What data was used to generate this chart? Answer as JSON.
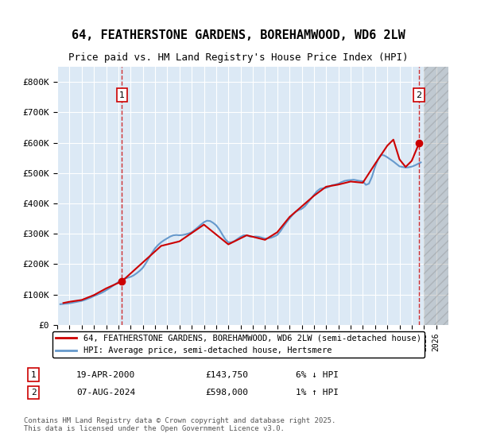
{
  "title": "64, FEATHERSTONE GARDENS, BOREHAMWOOD, WD6 2LW",
  "subtitle": "Price paid vs. HM Land Registry's House Price Index (HPI)",
  "ylabel_ticks": [
    "£0",
    "£100K",
    "£200K",
    "£300K",
    "£400K",
    "£500K",
    "£600K",
    "£700K",
    "£800K"
  ],
  "ylim": [
    0,
    850000
  ],
  "xlim_start": 1995,
  "xlim_end": 2027,
  "background_color": "#dce9f5",
  "plot_bg": "#dce9f5",
  "hatch_color": "#c0c0c0",
  "red_line_color": "#cc0000",
  "blue_line_color": "#6699cc",
  "marker1_date_x": 2000.3,
  "marker1_price": 143750,
  "marker2_date_x": 2024.6,
  "marker2_price": 598000,
  "legend1": "64, FEATHERSTONE GARDENS, BOREHAMWOOD, WD6 2LW (semi-detached house)",
  "legend2": "HPI: Average price, semi-detached house, Hertsmere",
  "annotation1_label": "1",
  "annotation2_label": "2",
  "note1_num": "1",
  "note1_date": "19-APR-2000",
  "note1_price": "£143,750",
  "note1_hpi": "6% ↓ HPI",
  "note2_num": "2",
  "note2_date": "07-AUG-2024",
  "note2_price": "£598,000",
  "note2_hpi": "1% ↑ HPI",
  "footer": "Contains HM Land Registry data © Crown copyright and database right 2025.\nThis data is licensed under the Open Government Licence v3.0.",
  "hpi_data": {
    "years": [
      1995.25,
      1995.5,
      1995.75,
      1996.0,
      1996.25,
      1996.5,
      1996.75,
      1997.0,
      1997.25,
      1997.5,
      1997.75,
      1998.0,
      1998.25,
      1998.5,
      1998.75,
      1999.0,
      1999.25,
      1999.5,
      1999.75,
      2000.0,
      2000.25,
      2000.5,
      2000.75,
      2001.0,
      2001.25,
      2001.5,
      2001.75,
      2002.0,
      2002.25,
      2002.5,
      2002.75,
      2003.0,
      2003.25,
      2003.5,
      2003.75,
      2004.0,
      2004.25,
      2004.5,
      2004.75,
      2005.0,
      2005.25,
      2005.5,
      2005.75,
      2006.0,
      2006.25,
      2006.5,
      2006.75,
      2007.0,
      2007.25,
      2007.5,
      2007.75,
      2008.0,
      2008.25,
      2008.5,
      2008.75,
      2009.0,
      2009.25,
      2009.5,
      2009.75,
      2010.0,
      2010.25,
      2010.5,
      2010.75,
      2011.0,
      2011.25,
      2011.5,
      2011.75,
      2012.0,
      2012.25,
      2012.5,
      2012.75,
      2013.0,
      2013.25,
      2013.5,
      2013.75,
      2014.0,
      2014.25,
      2014.5,
      2014.75,
      2015.0,
      2015.25,
      2015.5,
      2015.75,
      2016.0,
      2016.25,
      2016.5,
      2016.75,
      2017.0,
      2017.25,
      2017.5,
      2017.75,
      2018.0,
      2018.25,
      2018.5,
      2018.75,
      2019.0,
      2019.25,
      2019.5,
      2019.75,
      2020.0,
      2020.25,
      2020.5,
      2020.75,
      2021.0,
      2021.25,
      2021.5,
      2021.75,
      2022.0,
      2022.25,
      2022.5,
      2022.75,
      2023.0,
      2023.25,
      2023.5,
      2023.75,
      2024.0,
      2024.25,
      2024.5,
      2024.75
    ],
    "values": [
      68000,
      69000,
      70000,
      71000,
      73000,
      75000,
      77000,
      79000,
      82000,
      86000,
      90000,
      95000,
      99000,
      103000,
      108000,
      114000,
      120000,
      127000,
      134000,
      141000,
      148000,
      152000,
      155000,
      158000,
      163000,
      170000,
      178000,
      188000,
      203000,
      220000,
      237000,
      252000,
      263000,
      272000,
      279000,
      285000,
      291000,
      295000,
      296000,
      295000,
      296000,
      298000,
      301000,
      305000,
      313000,
      321000,
      330000,
      338000,
      343000,
      342000,
      336000,
      328000,
      315000,
      298000,
      282000,
      272000,
      272000,
      276000,
      283000,
      290000,
      295000,
      295000,
      291000,
      290000,
      291000,
      290000,
      287000,
      284000,
      285000,
      287000,
      291000,
      296000,
      308000,
      323000,
      337000,
      350000,
      362000,
      372000,
      378000,
      382000,
      390000,
      402000,
      415000,
      428000,
      440000,
      448000,
      450000,
      451000,
      455000,
      460000,
      462000,
      465000,
      470000,
      474000,
      476000,
      477000,
      478000,
      476000,
      474000,
      473000,
      461000,
      465000,
      488000,
      520000,
      545000,
      560000,
      558000,
      552000,
      545000,
      538000,
      530000,
      522000,
      520000,
      518000,
      519000,
      521000,
      525000,
      530000,
      535000
    ]
  },
  "price_data": {
    "years": [
      1995.5,
      1996.0,
      1997.0,
      1998.0,
      1999.0,
      2000.3,
      2003.5,
      2005.0,
      2007.0,
      2009.0,
      2010.5,
      2012.0,
      2013.0,
      2014.0,
      2015.0,
      2016.0,
      2017.0,
      2018.0,
      2019.0,
      2020.0,
      2021.0,
      2022.0,
      2022.5,
      2023.0,
      2023.5,
      2024.0,
      2024.6
    ],
    "values": [
      72000,
      76000,
      82000,
      98000,
      120000,
      143750,
      260000,
      275000,
      330000,
      265000,
      295000,
      280000,
      305000,
      355000,
      390000,
      425000,
      455000,
      462000,
      472000,
      468000,
      530000,
      590000,
      610000,
      545000,
      520000,
      540000,
      598000
    ]
  }
}
